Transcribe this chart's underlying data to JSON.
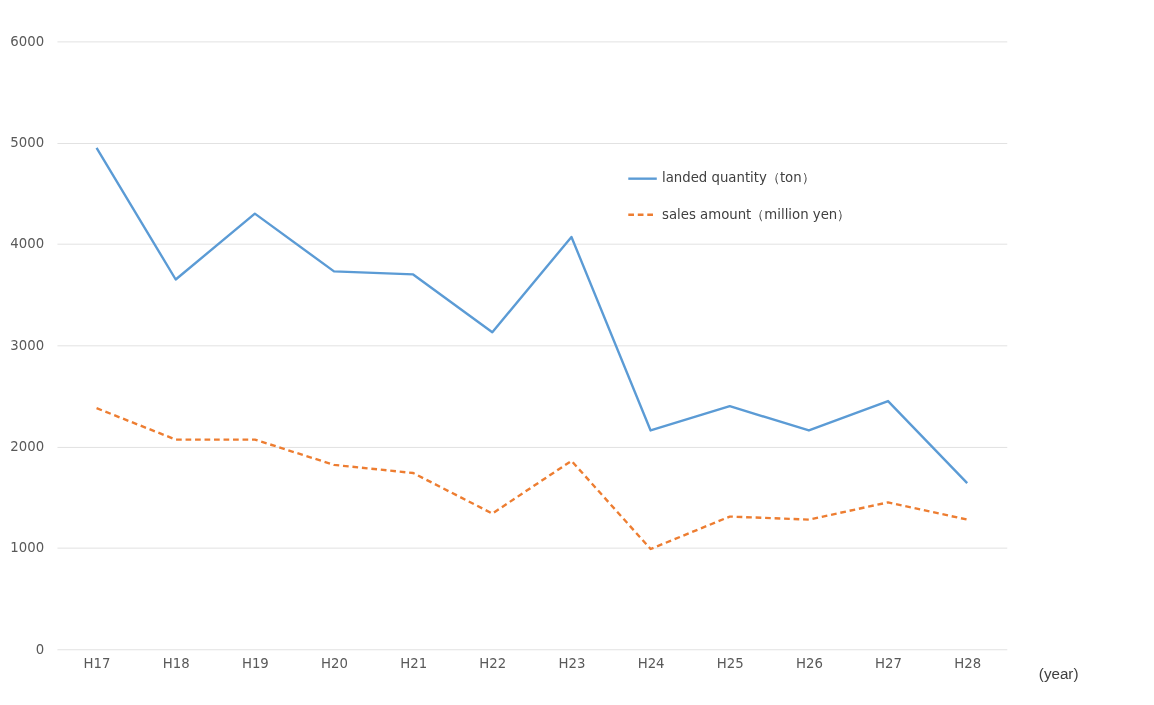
{
  "chart_data": {
    "type": "line",
    "xlabel": "(year)",
    "categories": [
      "H17",
      "H18",
      "H19",
      "H20",
      "H21",
      "H22",
      "H23",
      "H24",
      "H25",
      "H26",
      "H27",
      "H28"
    ],
    "series": [
      {
        "name": "landed quantity（ton）",
        "color": "#5b9bd5",
        "line_style": "solid",
        "values": [
          4950,
          3650,
          4300,
          3730,
          3700,
          3130,
          4070,
          2160,
          2400,
          2160,
          2450,
          1640
        ]
      },
      {
        "name": "sales amount（million yen）",
        "color": "#ed7d31",
        "line_style": "dashed",
        "values": [
          2380,
          2070,
          2070,
          1820,
          1740,
          1340,
          1860,
          990,
          1310,
          1280,
          1450,
          1280
        ]
      }
    ],
    "ylim": [
      0,
      6000
    ],
    "yticks": [
      0,
      1000,
      2000,
      3000,
      4000,
      5000,
      6000
    ],
    "grid": "y",
    "legend": "top right",
    "marker": "none"
  }
}
